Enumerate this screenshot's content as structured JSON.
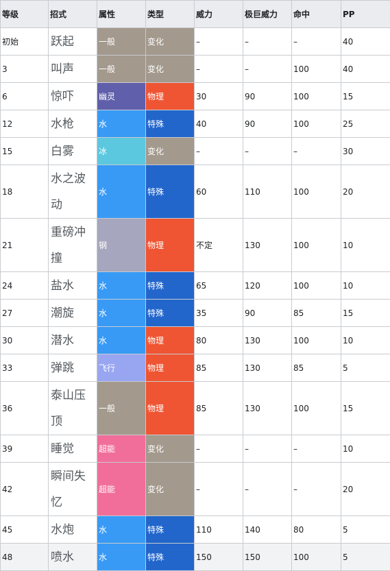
{
  "table": {
    "headers": [
      "等级",
      "招式",
      "属性",
      "类型",
      "威力",
      "极巨威力",
      "命中",
      "PP"
    ],
    "colors": {
      "types": {
        "一般": "#a39a8d",
        "幽灵": "#5f5fab",
        "水": "#399af6",
        "冰": "#5bc8e0",
        "钢": "#a6a6be",
        "飞行": "#98a6f2",
        "超能": "#f26e9a"
      },
      "categories": {
        "变化": "#a39a8d",
        "物理": "#ef5533",
        "特殊": "#2266cc"
      }
    },
    "rows": [
      {
        "level": "初始",
        "move": "跃起",
        "type": "一般",
        "category": "变化",
        "power": "–",
        "max_power": "–",
        "accuracy": "–",
        "pp": "40"
      },
      {
        "level": "3",
        "move": "叫声",
        "type": "一般",
        "category": "变化",
        "power": "–",
        "max_power": "–",
        "accuracy": "100",
        "pp": "40"
      },
      {
        "level": "6",
        "move": "惊吓",
        "type": "幽灵",
        "category": "物理",
        "power": "30",
        "max_power": "90",
        "accuracy": "100",
        "pp": "15"
      },
      {
        "level": "12",
        "move": "水枪",
        "type": "水",
        "category": "特殊",
        "power": "40",
        "max_power": "90",
        "accuracy": "100",
        "pp": "25"
      },
      {
        "level": "15",
        "move": "白雾",
        "type": "冰",
        "category": "变化",
        "power": "–",
        "max_power": "–",
        "accuracy": "–",
        "pp": "30"
      },
      {
        "level": "18",
        "move": "水之波动",
        "type": "水",
        "category": "特殊",
        "power": "60",
        "max_power": "110",
        "accuracy": "100",
        "pp": "20"
      },
      {
        "level": "21",
        "move": "重磅冲撞",
        "type": "钢",
        "category": "物理",
        "power": "不定",
        "max_power": "130",
        "accuracy": "100",
        "pp": "10"
      },
      {
        "level": "24",
        "move": "盐水",
        "type": "水",
        "category": "特殊",
        "power": "65",
        "max_power": "120",
        "accuracy": "100",
        "pp": "10"
      },
      {
        "level": "27",
        "move": "潮旋",
        "type": "水",
        "category": "特殊",
        "power": "35",
        "max_power": "90",
        "accuracy": "85",
        "pp": "15"
      },
      {
        "level": "30",
        "move": "潜水",
        "type": "水",
        "category": "物理",
        "power": "80",
        "max_power": "130",
        "accuracy": "100",
        "pp": "10"
      },
      {
        "level": "33",
        "move": "弹跳",
        "type": "飞行",
        "category": "物理",
        "power": "85",
        "max_power": "130",
        "accuracy": "85",
        "pp": "5"
      },
      {
        "level": "36",
        "move": "泰山压顶",
        "type": "一般",
        "category": "物理",
        "power": "85",
        "max_power": "130",
        "accuracy": "100",
        "pp": "15"
      },
      {
        "level": "39",
        "move": "睡觉",
        "type": "超能",
        "category": "变化",
        "power": "–",
        "max_power": "–",
        "accuracy": "–",
        "pp": "10"
      },
      {
        "level": "42",
        "move": "瞬间失忆",
        "type": "超能",
        "category": "变化",
        "power": "–",
        "max_power": "–",
        "accuracy": "–",
        "pp": "20"
      },
      {
        "level": "45",
        "move": "水炮",
        "type": "水",
        "category": "特殊",
        "power": "110",
        "max_power": "140",
        "accuracy": "80",
        "pp": "5"
      },
      {
        "level": "48",
        "move": "喷水",
        "type": "水",
        "category": "特殊",
        "power": "150",
        "max_power": "150",
        "accuracy": "100",
        "pp": "5"
      }
    ]
  }
}
